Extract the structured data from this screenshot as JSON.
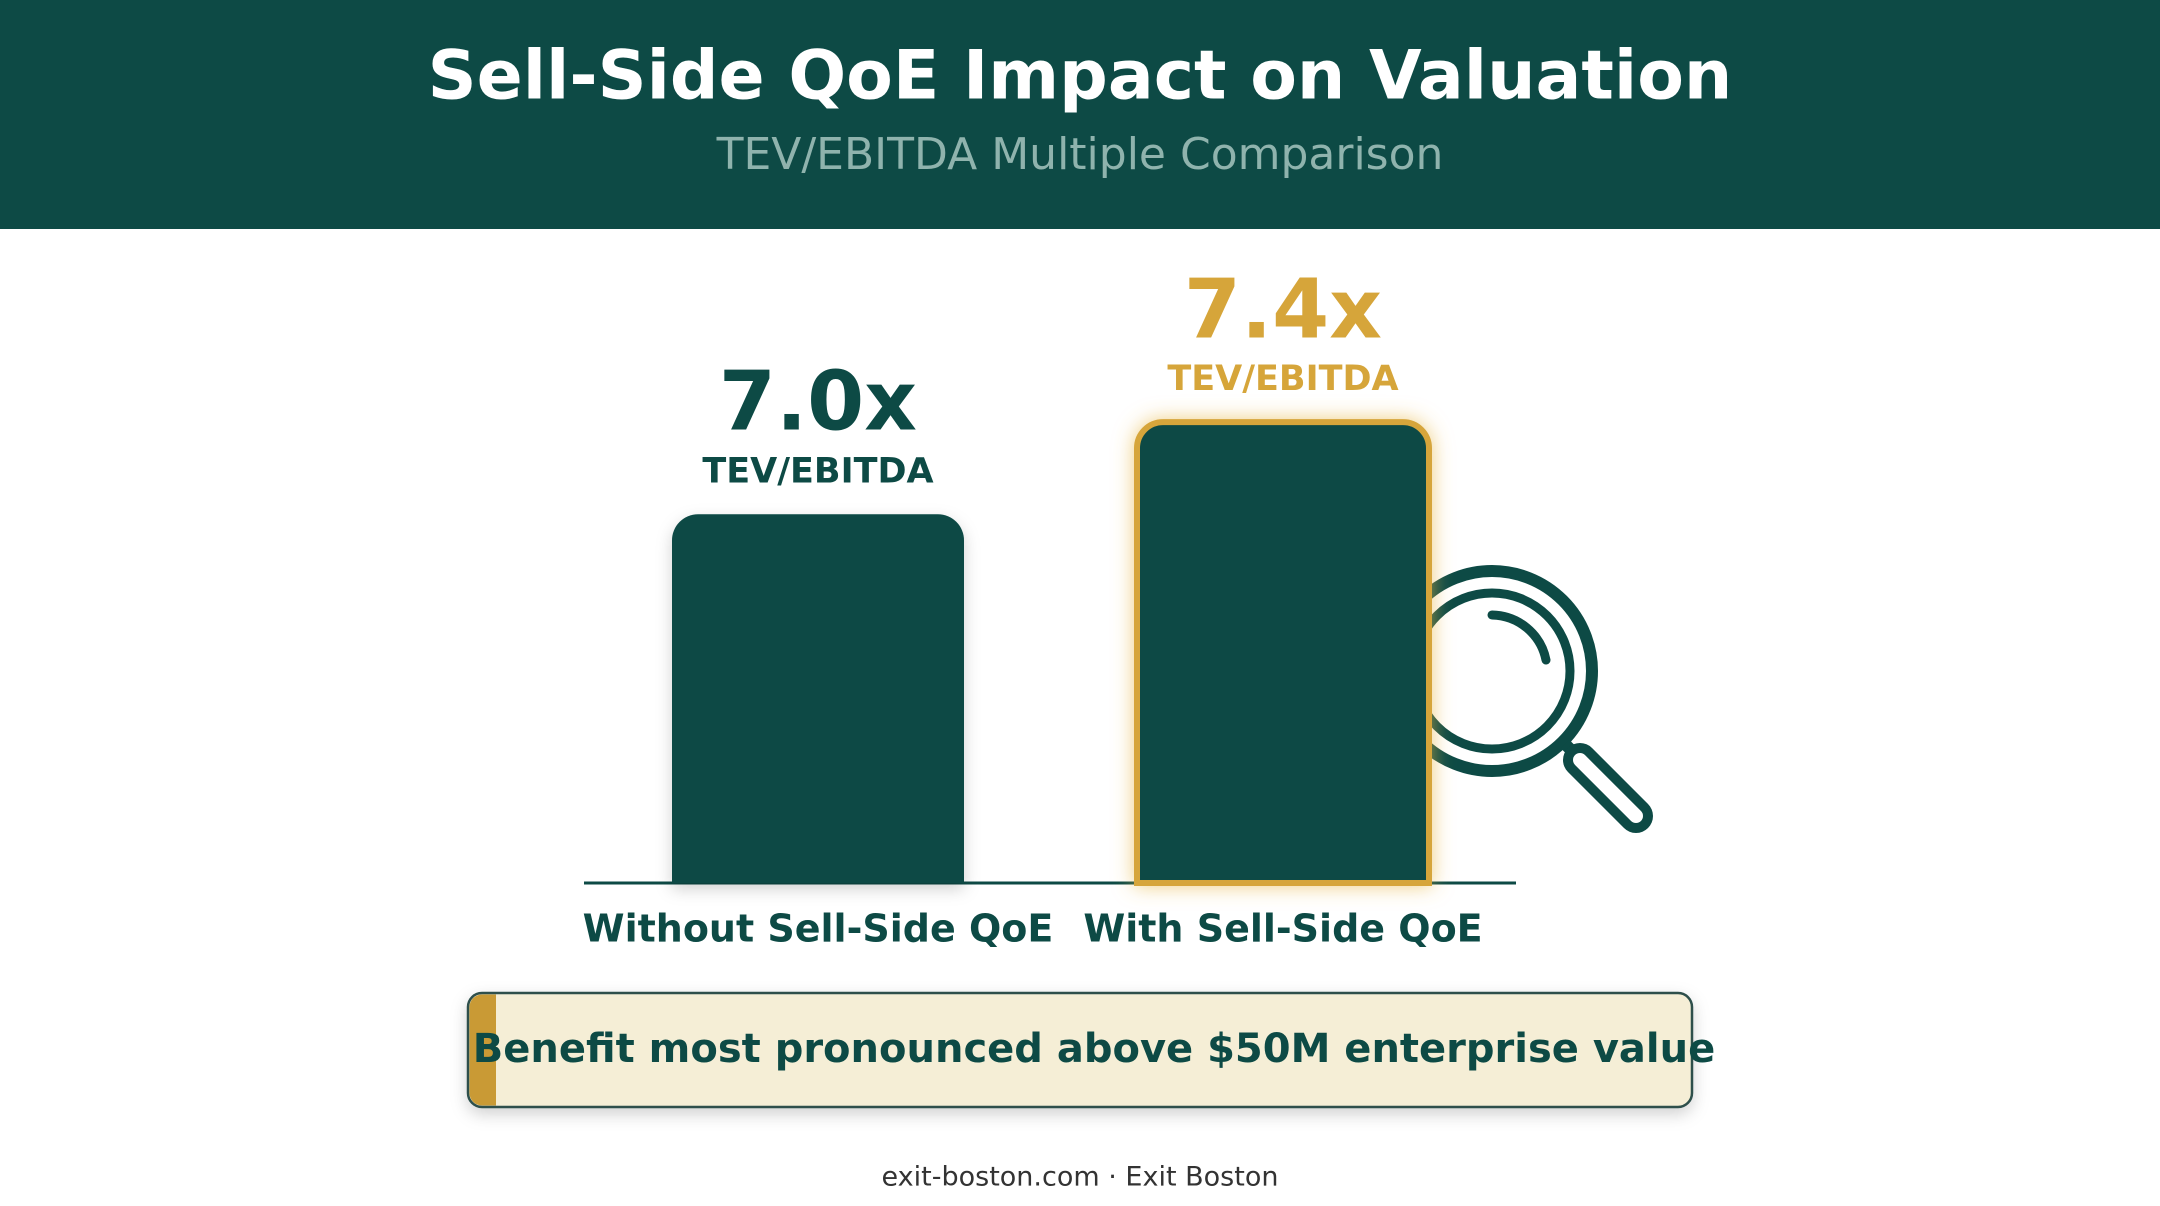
{
  "chart_data": {
    "type": "bar",
    "title": "Sell-Side QoE Impact on Valuation",
    "subtitle": "TEV/EBITDA Multiple Comparison",
    "categories": [
      "Without Sell-Side QoE",
      "With Sell-Side QoE"
    ],
    "values": [
      7.0,
      7.4
    ],
    "value_labels": [
      "7.0x",
      "7.4x"
    ],
    "value_unit_label": "TEV/EBITDA",
    "color": "#0d4a45",
    "highlight": [
      false,
      true
    ],
    "highlight_color": "#d6a53a",
    "ylim": [
      5.4,
      7.6
    ],
    "callout": "Benefit most pronounced above $50M enterprise value",
    "footer": "exit-boston.com · Exit Boston"
  }
}
